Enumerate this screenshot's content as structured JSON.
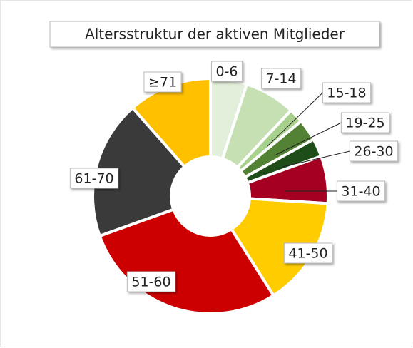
{
  "chart_data": {
    "type": "pie",
    "title": "Altersstruktur der aktiven Mitglieder",
    "categories": [
      "0-6",
      "7-14",
      "15-18",
      "19-25",
      "26-30",
      "31-40",
      "41-50",
      "51-60",
      "61-70",
      "≥71"
    ],
    "values": [
      5,
      7,
      2,
      3,
      2.5,
      6.5,
      15,
      28.5,
      19,
      11.5
    ],
    "colors": [
      "#e2efda",
      "#c6e0b4",
      "#a9d18e",
      "#548235",
      "#1e4d1a",
      "#a50021",
      "#ffcc00",
      "#cc0000",
      "#3a3a3a",
      "#ffc000"
    ],
    "donut": true
  }
}
